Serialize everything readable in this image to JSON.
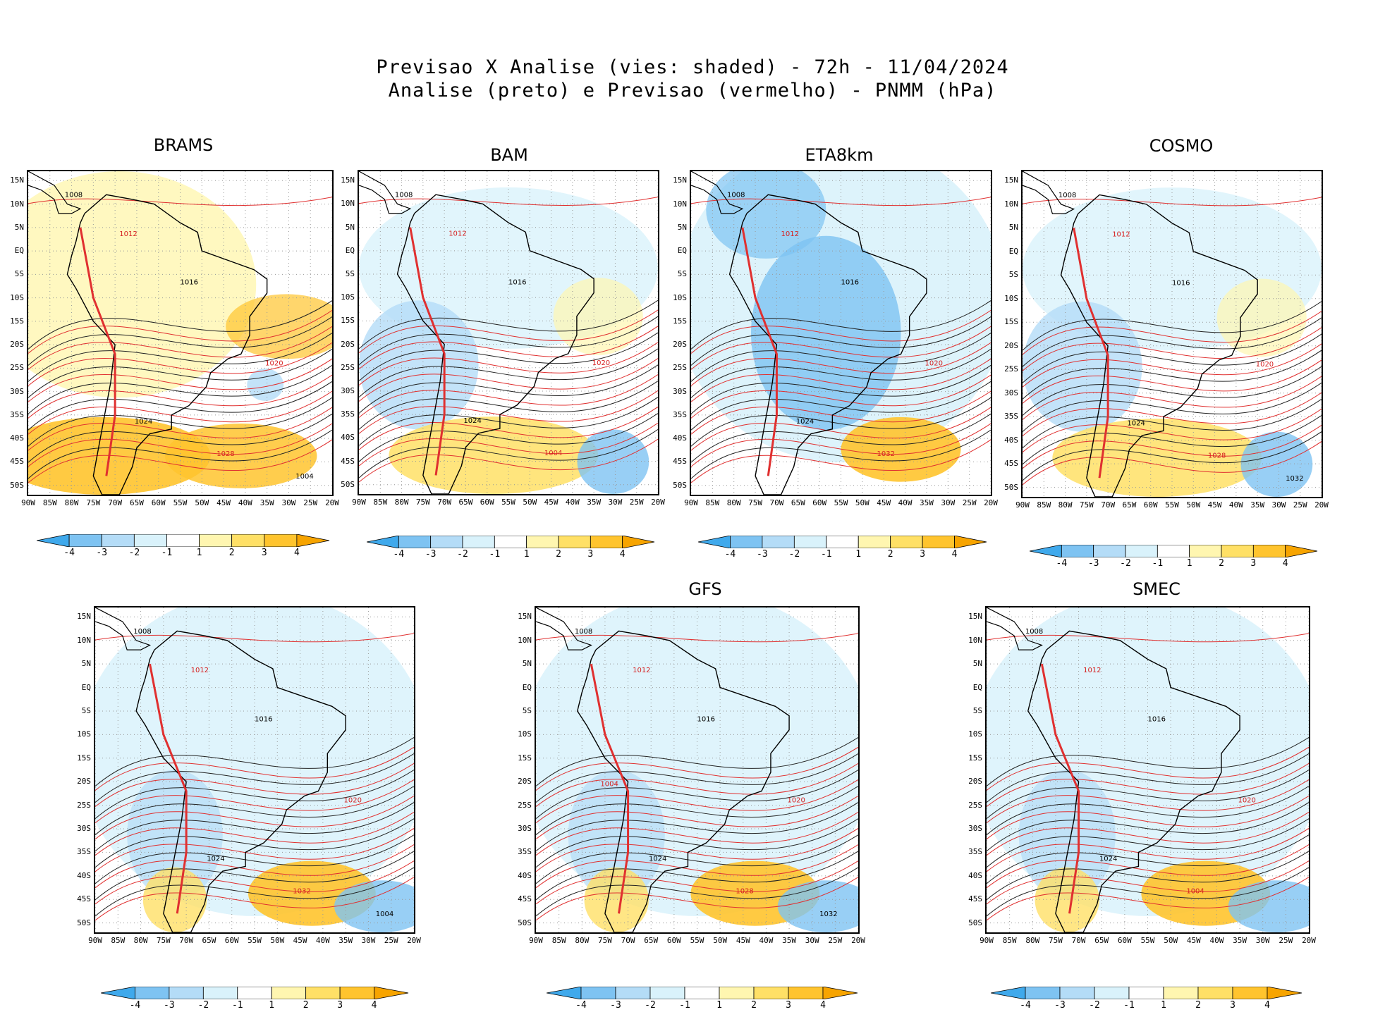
{
  "title": {
    "line1": "Previsao X Analise (vies: shaded) - 72h - 11/04/2024",
    "line2": "Analise (preto) e Previsao (vermelho) - PNMM (hPa)"
  },
  "lat_labels": [
    "15N",
    "10N",
    "5N",
    "EQ",
    "5S",
    "10S",
    "15S",
    "20S",
    "25S",
    "30S",
    "35S",
    "40S",
    "45S",
    "50S"
  ],
  "lon_labels": [
    "90W",
    "85W",
    "80W",
    "75W",
    "70W",
    "65W",
    "60W",
    "55W",
    "50W",
    "45W",
    "40W",
    "35W",
    "30W",
    "25W",
    "20W"
  ],
  "colorbar": {
    "labels": [
      "-4",
      "-3",
      "-2",
      "-1",
      "1",
      "2",
      "3",
      "4"
    ],
    "colors": [
      "#3fa9ec",
      "#7ec3f2",
      "#b4dcf7",
      "#d9f2fb",
      "#ffffff",
      "#fff6b0",
      "#ffe066",
      "#ffc42e",
      "#f7a400"
    ]
  },
  "panels": [
    {
      "name": "BRAMS",
      "bias": "warm",
      "contours": [
        "1008",
        "1012",
        "1016",
        "1020",
        "1024",
        "1028",
        "1004"
      ]
    },
    {
      "name": "BAM",
      "bias": "mixed",
      "contours": [
        "1008",
        "1012",
        "1016",
        "1020",
        "1024",
        "1004"
      ]
    },
    {
      "name": "ETA8km",
      "bias": "cold",
      "contours": [
        "1008",
        "1012",
        "1016",
        "1020",
        "1024",
        "1032"
      ]
    },
    {
      "name": "COSMO",
      "bias": "mixed",
      "contours": [
        "1008",
        "1012",
        "1016",
        "1020",
        "1024",
        "1028",
        "1032"
      ]
    },
    {
      "name": "",
      "bias": "cold-warmsouth",
      "contours": [
        "1008",
        "1012",
        "1016",
        "1020",
        "1024",
        "1032",
        "1004"
      ]
    },
    {
      "name": "GFS",
      "bias": "cold-warmsouth",
      "contours": [
        "1008",
        "1012",
        "1016",
        "1020",
        "1024",
        "1028",
        "1032",
        "1004"
      ]
    },
    {
      "name": "SMEC",
      "bias": "cold-warmsouth",
      "contours": [
        "1008",
        "1012",
        "1016",
        "1020",
        "1024",
        "1004"
      ]
    }
  ]
}
